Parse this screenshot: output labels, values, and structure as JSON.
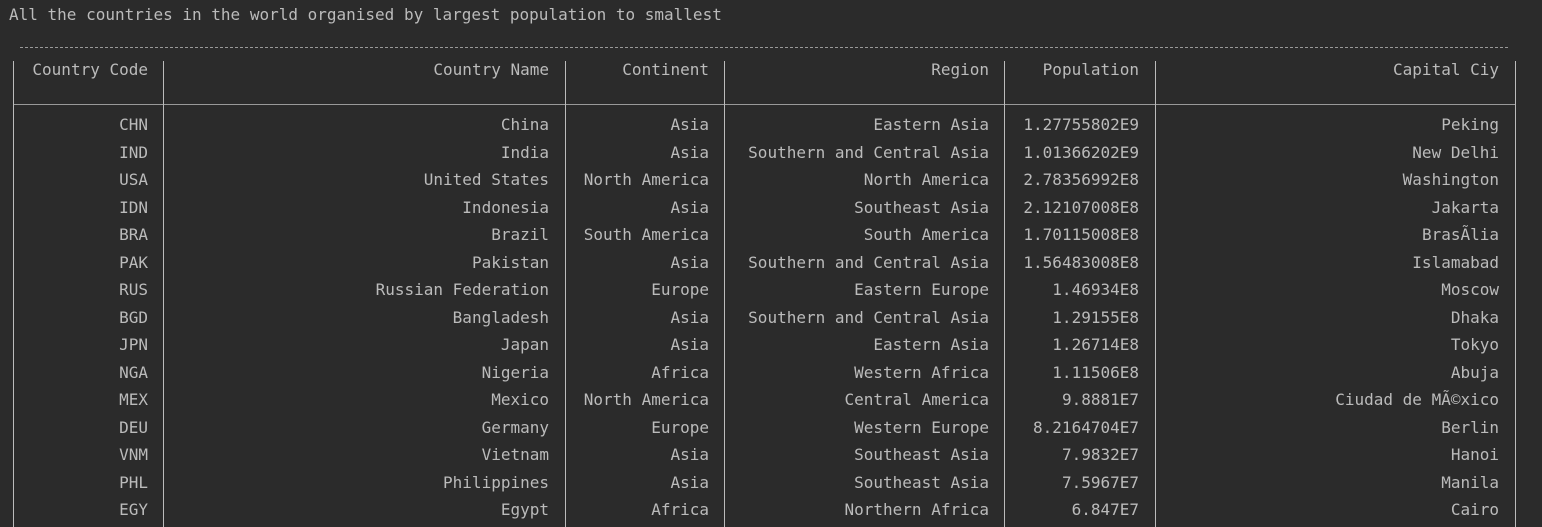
{
  "console": {
    "title": "All the countries in the world organised by largest population to smallest",
    "table": {
      "header": [
        "Country Code",
        "Country Name",
        "Continent",
        "Region",
        "Population",
        "Capital Ciy"
      ],
      "rows": [
        [
          "CHN",
          "China",
          "Asia",
          "Eastern Asia",
          "1.27755802E9",
          "Peking"
        ],
        [
          "IND",
          "India",
          "Asia",
          "Southern and Central Asia",
          "1.01366202E9",
          "New Delhi"
        ],
        [
          "USA",
          "United States",
          "North America",
          "North America",
          "2.78356992E8",
          "Washington"
        ],
        [
          "IDN",
          "Indonesia",
          "Asia",
          "Southeast Asia",
          "2.12107008E8",
          "Jakarta"
        ],
        [
          "BRA",
          "Brazil",
          "South America",
          "South America",
          "1.70115008E8",
          "BrasÃ­lia"
        ],
        [
          "PAK",
          "Pakistan",
          "Asia",
          "Southern and Central Asia",
          "1.56483008E8",
          "Islamabad"
        ],
        [
          "RUS",
          "Russian Federation",
          "Europe",
          "Eastern Europe",
          "1.46934E8",
          "Moscow"
        ],
        [
          "BGD",
          "Bangladesh",
          "Asia",
          "Southern and Central Asia",
          "1.29155E8",
          "Dhaka"
        ],
        [
          "JPN",
          "Japan",
          "Asia",
          "Eastern Asia",
          "1.26714E8",
          "Tokyo"
        ],
        [
          "NGA",
          "Nigeria",
          "Africa",
          "Western Africa",
          "1.11506E8",
          "Abuja"
        ],
        [
          "MEX",
          "Mexico",
          "North America",
          "Central America",
          "9.8881E7",
          "Ciudad de MÃ©xico"
        ],
        [
          "DEU",
          "Germany",
          "Europe",
          "Western Europe",
          "8.2164704E7",
          "Berlin"
        ],
        [
          "VNM",
          "Vietnam",
          "Asia",
          "Southeast Asia",
          "7.9832E7",
          "Hanoi"
        ],
        [
          "PHL",
          "Philippines",
          "Asia",
          "Southeast Asia",
          "7.5967E7",
          "Manila"
        ],
        [
          "EGY",
          "Egypt",
          "Africa",
          "Northern Africa",
          "6.847E7",
          "Cairo"
        ]
      ]
    }
  }
}
